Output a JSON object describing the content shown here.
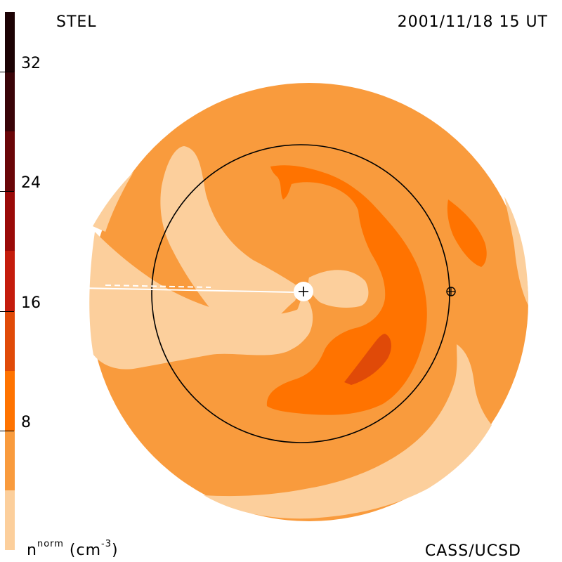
{
  "header": {
    "source": "STEL",
    "timestamp": "2001/11/18 15 UT"
  },
  "footer": {
    "unit_base": "n",
    "unit_sup": "norm",
    "unit_rest": " (cm",
    "unit_exp": "-3",
    "unit_close": ")",
    "credit": "CASS/UCSD"
  },
  "colorbar": {
    "tick_labels": [
      "32",
      "24",
      "16",
      "8"
    ],
    "tick_values": [
      32,
      24,
      16,
      8
    ],
    "range": [
      0,
      36
    ],
    "levels": [
      {
        "from": 0,
        "to": 4,
        "color": "#fccf9c"
      },
      {
        "from": 4,
        "to": 8,
        "color": "#f99b3d"
      },
      {
        "from": 8,
        "to": 12,
        "color": "#ff7300"
      },
      {
        "from": 12,
        "to": 16,
        "color": "#e04a08"
      },
      {
        "from": 16,
        "to": 20,
        "color": "#c41c0c"
      },
      {
        "from": 20,
        "to": 24,
        "color": "#9a0a08"
      },
      {
        "from": 24,
        "to": 28,
        "color": "#6a0608"
      },
      {
        "from": 28,
        "to": 32,
        "color": "#3a0408"
      },
      {
        "from": 32,
        "to": 36,
        "color": "#1c0204"
      }
    ]
  },
  "map_colors": {
    "background_level": "#f99b3d",
    "low_level": "#fccf9c",
    "mid_level": "#ff7300",
    "high_level": "#e04a08",
    "orbit_line": "#000000",
    "sun_marker": "#ffffff"
  }
}
